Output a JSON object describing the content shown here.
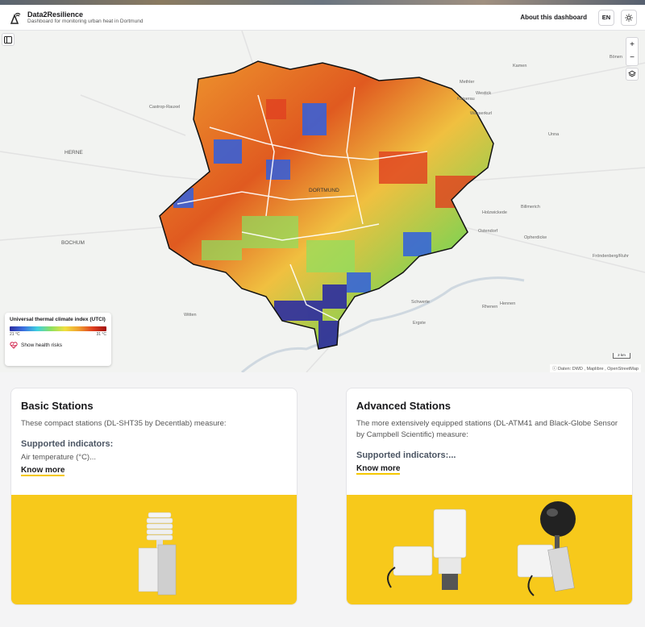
{
  "header": {
    "title": "Data2Resilience",
    "subtitle": "Dashboard for monitoring urban heat in Dortmund",
    "about_label": "About this dashboard",
    "lang_label": "EN",
    "theme_icon": "sun-icon",
    "logo_icon": "antenna-logo-icon"
  },
  "map": {
    "zoom_in_label": "+",
    "zoom_out_label": "−",
    "places": {
      "castrop": "Castrop-Rauxel",
      "herne": "HERNE",
      "bochum": "BOCHUM",
      "witten": "Witten",
      "dortmund": "DORTMUND",
      "kamen": "Kamen",
      "boenen": "Bönen",
      "unna": "Unna",
      "holzwickede": "Holzwickede",
      "schwerte": "Schwerte",
      "froendenberg": "Fröndenberg/Ruhr",
      "methler": "Methler",
      "westick": "Westick",
      "kaiserau": "Kaiserau",
      "wasserkurl": "Wasserkurl",
      "billmerich": "Billmerich",
      "opherdicke": "Opherdicke",
      "ostendorf": "Ostendorf",
      "rhenen": "Rhenen",
      "hennen": "Hennen",
      "ergste": "Ergste"
    },
    "scale_label": "2 km",
    "attribution": "ⓘ Daten: DWD , Maplibre , OpenStreetMap"
  },
  "legend": {
    "title": "Universal thermal climate index (UTCI)",
    "min_label": "21 °C",
    "max_label": "31 °C",
    "health_label": "Show health risks",
    "colors": [
      "#2c2ca0",
      "#3b6fe0",
      "#3fd0e0",
      "#8ee060",
      "#f0e040",
      "#f0a030",
      "#e04020",
      "#a01010"
    ]
  },
  "cards": {
    "basic": {
      "title": "Basic Stations",
      "desc": "These compact stations (DL-SHT35 by Decentlab) measure:",
      "supported": "Supported indicators:",
      "indicator": "Air temperature (°C)...",
      "know_more": "Know more"
    },
    "advanced": {
      "title": "Advanced Stations",
      "desc": "The more extensively equipped stations (DL-ATM41 and Black-Globe Sensor by Campbell Scientific) measure:",
      "supported": "Supported indicators:...",
      "know_more": "Know more"
    }
  },
  "accent_color": "#f7c91b"
}
